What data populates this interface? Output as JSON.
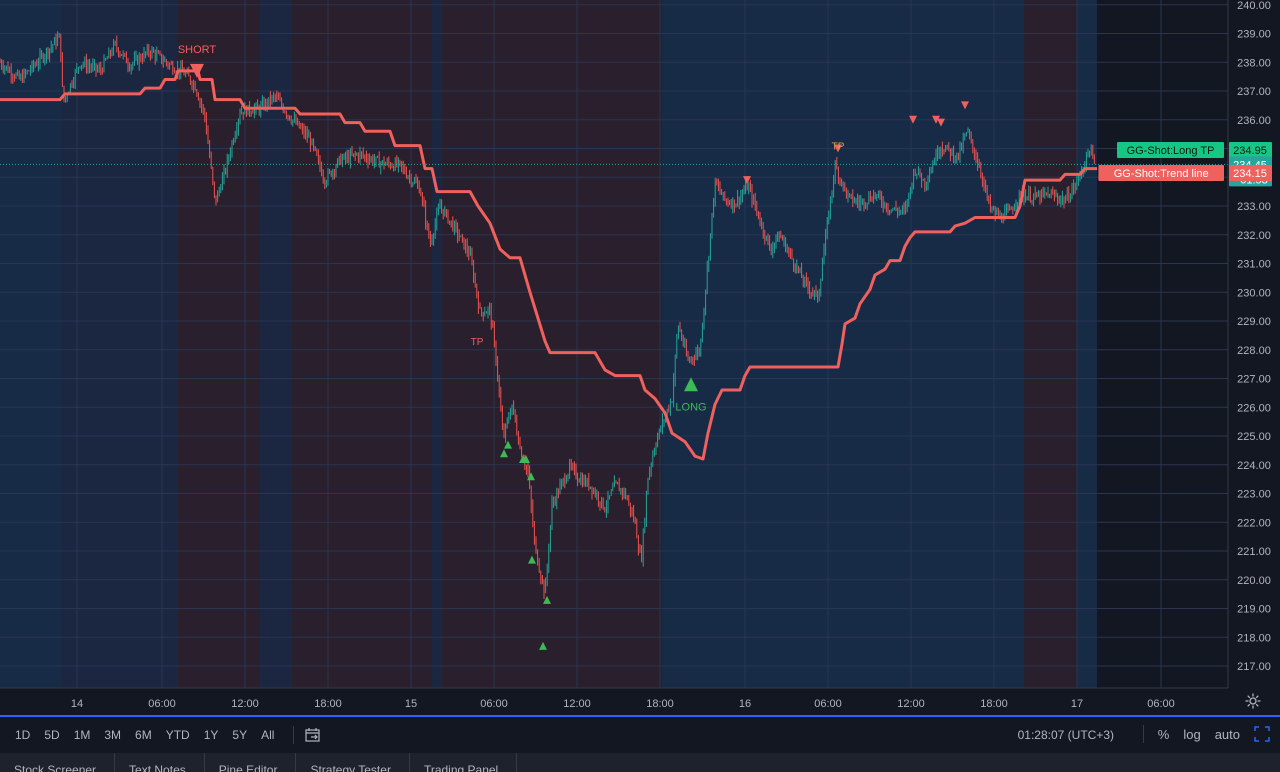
{
  "chart_data": {
    "type": "candlestick",
    "y_axis": {
      "min": 216.2,
      "max": 240.0,
      "ticks": [
        217,
        218,
        219,
        220,
        221,
        222,
        223,
        224,
        225,
        226,
        227,
        228,
        229,
        230,
        231,
        232,
        233,
        234,
        235,
        236,
        237,
        238,
        239,
        240
      ]
    },
    "y_tick_labels": [
      "217.00",
      "218.00",
      "219.00",
      "220.00",
      "221.00",
      "222.00",
      "223.00",
      "224.00",
      "225.00",
      "226.00",
      "227.00",
      "228.00",
      "229.00",
      "230.00",
      "231.00",
      "232.00",
      "233.00",
      "234.00",
      "235.00",
      "236.00",
      "237.00",
      "238.00",
      "239.00",
      "240.00"
    ],
    "x_tick_labels": [
      "14",
      "06:00",
      "12:00",
      "18:00",
      "15",
      "06:00",
      "12:00",
      "18:00",
      "16",
      "06:00",
      "12:00",
      "18:00",
      "17",
      "06:00"
    ],
    "price_path": [
      [
        0,
        238.0
      ],
      [
        20,
        237.4
      ],
      [
        40,
        238.1
      ],
      [
        60,
        238.9
      ],
      [
        63,
        236.6
      ],
      [
        80,
        238.0
      ],
      [
        100,
        237.7
      ],
      [
        115,
        238.6
      ],
      [
        130,
        237.9
      ],
      [
        150,
        238.4
      ],
      [
        170,
        237.9
      ],
      [
        185,
        237.6
      ],
      [
        195,
        237.2
      ],
      [
        205,
        236.1
      ],
      [
        215,
        233.1
      ],
      [
        225,
        234.2
      ],
      [
        240,
        236.3
      ],
      [
        260,
        236.4
      ],
      [
        275,
        236.8
      ],
      [
        290,
        236.1
      ],
      [
        310,
        235.3
      ],
      [
        325,
        233.9
      ],
      [
        340,
        234.6
      ],
      [
        360,
        234.8
      ],
      [
        380,
        234.5
      ],
      [
        400,
        234.4
      ],
      [
        420,
        233.6
      ],
      [
        430,
        231.7
      ],
      [
        440,
        233.0
      ],
      [
        455,
        232.2
      ],
      [
        470,
        231.3
      ],
      [
        480,
        229.3
      ],
      [
        490,
        229.4
      ],
      [
        497,
        227.4
      ],
      [
        503,
        224.9
      ],
      [
        512,
        226.1
      ],
      [
        520,
        224.6
      ],
      [
        528,
        223.7
      ],
      [
        535,
        221.1
      ],
      [
        545,
        219.5
      ],
      [
        552,
        222.6
      ],
      [
        560,
        223.2
      ],
      [
        570,
        223.9
      ],
      [
        580,
        223.5
      ],
      [
        590,
        223.3
      ],
      [
        605,
        222.5
      ],
      [
        615,
        223.3
      ],
      [
        625,
        223.0
      ],
      [
        635,
        222.0
      ],
      [
        641,
        220.6
      ],
      [
        648,
        223.6
      ],
      [
        655,
        224.7
      ],
      [
        665,
        225.7
      ],
      [
        672,
        226.3
      ],
      [
        678,
        228.9
      ],
      [
        688,
        227.6
      ],
      [
        700,
        228.0
      ],
      [
        707,
        230.7
      ],
      [
        715,
        233.8
      ],
      [
        725,
        233.2
      ],
      [
        735,
        233.1
      ],
      [
        748,
        233.7
      ],
      [
        760,
        232.5
      ],
      [
        770,
        231.5
      ],
      [
        780,
        232.0
      ],
      [
        790,
        231.3
      ],
      [
        805,
        230.3
      ],
      [
        818,
        229.8
      ],
      [
        826,
        232.0
      ],
      [
        835,
        234.4
      ],
      [
        848,
        233.3
      ],
      [
        860,
        233.1
      ],
      [
        875,
        233.4
      ],
      [
        890,
        232.9
      ],
      [
        905,
        232.8
      ],
      [
        915,
        234.3
      ],
      [
        925,
        233.8
      ],
      [
        940,
        235.1
      ],
      [
        950,
        234.9
      ],
      [
        958,
        234.7
      ],
      [
        967,
        235.6
      ],
      [
        980,
        234.3
      ],
      [
        990,
        232.9
      ],
      [
        1000,
        232.6
      ],
      [
        1010,
        232.8
      ],
      [
        1020,
        233.4
      ],
      [
        1035,
        233.3
      ],
      [
        1050,
        233.4
      ],
      [
        1065,
        233.2
      ],
      [
        1075,
        233.7
      ],
      [
        1085,
        234.5
      ],
      [
        1089,
        235.0
      ],
      [
        1095,
        234.4
      ]
    ],
    "series": [
      {
        "name": "GG-Shot:Trend line",
        "color": "#f0605d",
        "points": [
          [
            0,
            236.7
          ],
          [
            60,
            236.7
          ],
          [
            65,
            236.9
          ],
          [
            140,
            236.9
          ],
          [
            145,
            237.1
          ],
          [
            160,
            237.1
          ],
          [
            165,
            237.4
          ],
          [
            175,
            237.4
          ],
          [
            178,
            237.7
          ],
          [
            198,
            237.7
          ],
          [
            200,
            237.4
          ],
          [
            212,
            237.4
          ],
          [
            215,
            236.7
          ],
          [
            240,
            236.7
          ],
          [
            245,
            236.4
          ],
          [
            295,
            236.4
          ],
          [
            300,
            236.2
          ],
          [
            340,
            236.2
          ],
          [
            345,
            235.9
          ],
          [
            360,
            235.9
          ],
          [
            365,
            235.6
          ],
          [
            390,
            235.6
          ],
          [
            395,
            235.1
          ],
          [
            420,
            235.1
          ],
          [
            425,
            234.3
          ],
          [
            432,
            234.3
          ],
          [
            437,
            233.5
          ],
          [
            470,
            233.5
          ],
          [
            478,
            233.0
          ],
          [
            490,
            232.4
          ],
          [
            500,
            231.5
          ],
          [
            510,
            231.2
          ],
          [
            520,
            231.2
          ],
          [
            530,
            230.0
          ],
          [
            545,
            228.3
          ],
          [
            550,
            227.9
          ],
          [
            595,
            227.9
          ],
          [
            605,
            227.3
          ],
          [
            615,
            227.1
          ],
          [
            640,
            227.1
          ],
          [
            645,
            226.6
          ],
          [
            655,
            226.3
          ],
          [
            665,
            225.8
          ],
          [
            672,
            225.1
          ],
          [
            685,
            224.8
          ],
          [
            695,
            224.3
          ],
          [
            703,
            224.2
          ],
          [
            708,
            225.1
          ],
          [
            715,
            226.1
          ],
          [
            722,
            226.6
          ],
          [
            740,
            226.6
          ],
          [
            745,
            227.1
          ],
          [
            750,
            227.4
          ],
          [
            838,
            227.4
          ],
          [
            842,
            228.2
          ],
          [
            845,
            228.9
          ],
          [
            855,
            229.1
          ],
          [
            860,
            229.6
          ],
          [
            870,
            230.1
          ],
          [
            875,
            230.6
          ],
          [
            885,
            230.8
          ],
          [
            890,
            231.1
          ],
          [
            900,
            231.1
          ],
          [
            905,
            231.6
          ],
          [
            910,
            231.9
          ],
          [
            915,
            232.1
          ],
          [
            950,
            232.1
          ],
          [
            955,
            232.3
          ],
          [
            965,
            232.4
          ],
          [
            975,
            232.6
          ],
          [
            1015,
            232.6
          ],
          [
            1020,
            233.0
          ],
          [
            1025,
            233.9
          ],
          [
            1060,
            233.9
          ],
          [
            1065,
            234.1
          ],
          [
            1080,
            234.1
          ],
          [
            1085,
            234.3
          ],
          [
            1097,
            234.3
          ]
        ]
      }
    ],
    "bg_zones": [
      {
        "from": 0,
        "to": 62,
        "tone": "bull"
      },
      {
        "from": 62,
        "to": 178,
        "tone": "neutral"
      },
      {
        "from": 178,
        "to": 260,
        "tone": "bear"
      },
      {
        "from": 260,
        "to": 292,
        "tone": "neutral"
      },
      {
        "from": 292,
        "to": 432,
        "tone": "bear"
      },
      {
        "from": 432,
        "to": 442,
        "tone": "neutral"
      },
      {
        "from": 442,
        "to": 662,
        "tone": "bear"
      },
      {
        "from": 662,
        "to": 1024,
        "tone": "bull"
      },
      {
        "from": 1024,
        "to": 1077,
        "tone": "bear"
      },
      {
        "from": 1077,
        "to": 1097,
        "tone": "bull"
      }
    ],
    "signals": [
      {
        "type": "sell",
        "text": "SHORT",
        "x": 197,
        "y": 237.7,
        "big": true
      },
      {
        "type": "sell",
        "text": "",
        "x": 747,
        "y": 233.9
      },
      {
        "type": "sell",
        "text": "",
        "x": 838,
        "y": 235.0
      },
      {
        "type": "sell",
        "text": "",
        "x": 913,
        "y": 236.0
      },
      {
        "type": "sell",
        "text": "",
        "x": 936,
        "y": 236.0
      },
      {
        "type": "sell",
        "text": "",
        "x": 941,
        "y": 235.9
      },
      {
        "type": "sell",
        "text": "",
        "x": 965,
        "y": 236.5
      },
      {
        "type": "buy",
        "text": "LONG",
        "x": 691,
        "y": 226.8,
        "big": true
      },
      {
        "type": "buy",
        "text": "",
        "x": 504,
        "y": 224.4
      },
      {
        "type": "buy",
        "text": "",
        "x": 508,
        "y": 224.7
      },
      {
        "type": "buy",
        "text": "",
        "x": 523,
        "y": 224.2
      },
      {
        "type": "buy",
        "text": "",
        "x": 526,
        "y": 224.2
      },
      {
        "type": "buy",
        "text": "",
        "x": 531,
        "y": 223.6
      },
      {
        "type": "buy",
        "text": "",
        "x": 532,
        "y": 220.7
      },
      {
        "type": "buy",
        "text": "",
        "x": 547,
        "y": 219.3
      },
      {
        "type": "buy",
        "text": "",
        "x": 543,
        "y": 217.7
      }
    ],
    "text_marks": [
      {
        "text": "TP",
        "x": 477,
        "y": 228.3,
        "color": "#f0605d"
      },
      {
        "text": "TP",
        "x": 838,
        "y": 235.1,
        "color": "#e0a050"
      }
    ],
    "price_line": 234.45,
    "labels": [
      {
        "name": "GG-Shot:Long TP",
        "value": "234.95",
        "price": 234.95,
        "color": "#16c784"
      },
      {
        "name": "",
        "value": "234.45",
        "price": 234.45,
        "color": "#26a69a",
        "sub": "01:53"
      },
      {
        "name": "GG-Shot:Trend line",
        "value": "234.15",
        "price": 234.15,
        "color": "#f0605d"
      }
    ]
  },
  "toolbar": {
    "ranges": [
      "1D",
      "5D",
      "1M",
      "3M",
      "6M",
      "YTD",
      "1Y",
      "5Y",
      "All"
    ],
    "clock": "01:28:07 (UTC+3)",
    "percent": "%",
    "log": "log",
    "auto": "auto"
  },
  "panel_tabs": [
    "Stock Screener",
    "Text Notes",
    "Pine Editor",
    "Strategy Tester",
    "Trading Panel"
  ]
}
